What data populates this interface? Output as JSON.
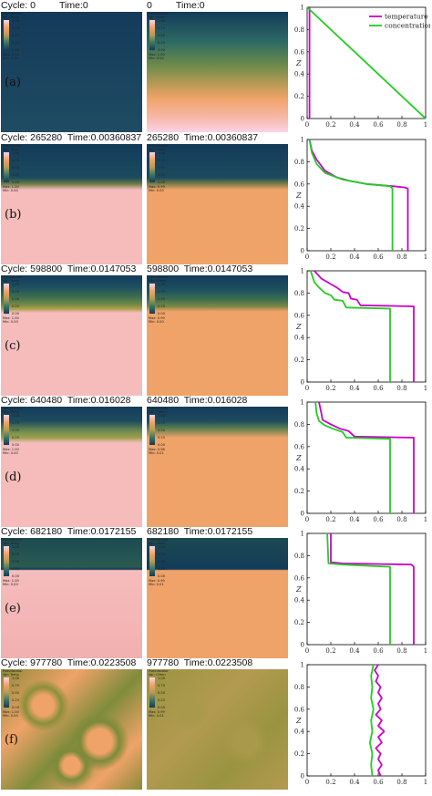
{
  "colors": {
    "dark": "#143b5a",
    "peach": "#f0a368",
    "pink": "#f6bcbc",
    "temperature": "#cc00cc",
    "concentration": "#22cc22"
  },
  "rows": [
    {
      "label": "(a)",
      "cycle_label": "Cycle:",
      "cycle": "0",
      "time_label": "Time:0",
      "temp_legend": {
        "title": "Pseudocolor",
        "var": "Var: Temp",
        "max": "Max: 0.02",
        "min": "Min: 0.00"
      },
      "chem_legend": {
        "title": "Pseudocolor",
        "var": "Var: Chem",
        "max": "Max: 1.00",
        "min": "Min: 0.00"
      }
    },
    {
      "label": "(b)",
      "cycle_label": "Cycle:",
      "cycle": "265280",
      "time_label": "Time:0.00360837",
      "temp_legend": {
        "title": "Pseudocolor",
        "var": "Var: Temp",
        "max": "Max: 1.00",
        "min": "Min: 0.00"
      },
      "chem_legend": {
        "title": "Pseudocolor",
        "var": "Var: Chem",
        "max": "Max: 0.99",
        "min": "Min: 0.00"
      }
    },
    {
      "label": "(c)",
      "cycle_label": "Cycle:",
      "cycle": "598800",
      "time_label": "Time:0.0147053",
      "temp_legend": {
        "title": "Pseudocolor",
        "var": "Var: Temp",
        "max": "Max: 1.00",
        "min": "Min: 0.00"
      },
      "chem_legend": {
        "title": "Pseudocolor",
        "var": "Var: Chem",
        "max": "Max: 0.99",
        "min": "Min: 0.00"
      }
    },
    {
      "label": "(d)",
      "cycle_label": "Cycle:",
      "cycle": "640480",
      "time_label": "Time:0.016028",
      "temp_legend": {
        "title": "Pseudocolor",
        "var": "Var: Temp",
        "max": "Max: 1.00",
        "min": "Min: 0.00"
      },
      "chem_legend": {
        "title": "Pseudocolor",
        "var": "Var: Chem",
        "max": "Max: 0.98",
        "min": "Min: 0.01"
      }
    },
    {
      "label": "(e)",
      "cycle_label": "Cycle:",
      "cycle": "682180",
      "time_label": "Time:0.0172155",
      "temp_legend": {
        "title": "Pseudocolor",
        "var": "Var: Temp",
        "max": "Max: 1.00",
        "min": "Min: 0.00"
      },
      "chem_legend": {
        "title": "Pseudocolor",
        "var": "Var: Chem",
        "max": "Max: 0.99",
        "min": "Min: 0.01"
      }
    },
    {
      "label": "(f)",
      "cycle_label": "Cycle:",
      "cycle": "977780",
      "time_label": "Time:0.0223508",
      "temp_legend": {
        "title": "Pseudocolor",
        "var": "Var: Temp",
        "max": "Max: 1.00",
        "min": "Min: 0.00"
      },
      "chem_legend": {
        "title": "Pseudocolor",
        "var": "Var: Chem",
        "max": "Max: 0.99",
        "min": "Min: 0.01"
      }
    }
  ],
  "colorbar_ticks": [
    "1.00",
    "0.75",
    "0.50",
    "0.25",
    "0.00"
  ],
  "chart_data": {
    "type": "line",
    "xlim": [
      0,
      1
    ],
    "ylim": [
      0,
      1
    ],
    "x_ticks": [
      "0",
      "0.2",
      "0.4",
      "0.6",
      "0.8",
      "1"
    ],
    "y_ticks": [
      "0",
      "0.2",
      "0.4",
      "0.6",
      "0.8",
      "1"
    ],
    "ylabel": "Z",
    "xlabel": "",
    "legend": [
      "temperature",
      "concentration"
    ],
    "legend_position": "top-right",
    "profiles": [
      {
        "panel": "(a)",
        "temperature": [
          [
            0.02,
            0
          ],
          [
            0.02,
            1
          ]
        ],
        "concentration": [
          [
            1,
            0
          ],
          [
            0,
            1
          ]
        ]
      },
      {
        "panel": "(b)",
        "temperature": [
          [
            0.85,
            0
          ],
          [
            0.85,
            0.56
          ],
          [
            0.82,
            0.57
          ],
          [
            0.72,
            0.58
          ],
          [
            0.5,
            0.6
          ],
          [
            0.35,
            0.63
          ],
          [
            0.25,
            0.66
          ],
          [
            0.15,
            0.72
          ],
          [
            0.08,
            0.82
          ],
          [
            0.04,
            0.9
          ],
          [
            0.02,
            1
          ]
        ],
        "concentration": [
          [
            0.72,
            0
          ],
          [
            0.72,
            0.56
          ],
          [
            0.7,
            0.58
          ],
          [
            0.5,
            0.6
          ],
          [
            0.3,
            0.64
          ],
          [
            0.15,
            0.7
          ],
          [
            0.08,
            0.78
          ],
          [
            0.04,
            0.88
          ],
          [
            0.02,
            1
          ]
        ]
      },
      {
        "panel": "(c)",
        "temperature": [
          [
            0.9,
            0
          ],
          [
            0.9,
            0.68
          ],
          [
            0.45,
            0.69
          ],
          [
            0.42,
            0.74
          ],
          [
            0.37,
            0.75
          ],
          [
            0.35,
            0.8
          ],
          [
            0.3,
            0.81
          ],
          [
            0.25,
            0.85
          ],
          [
            0.2,
            0.88
          ],
          [
            0.12,
            0.93
          ],
          [
            0.06,
            1
          ]
        ],
        "concentration": [
          [
            0.7,
            0
          ],
          [
            0.7,
            0.66
          ],
          [
            0.33,
            0.67
          ],
          [
            0.3,
            0.73
          ],
          [
            0.23,
            0.74
          ],
          [
            0.2,
            0.78
          ],
          [
            0.15,
            0.8
          ],
          [
            0.1,
            0.85
          ],
          [
            0.06,
            0.9
          ],
          [
            0.03,
            1
          ]
        ]
      },
      {
        "panel": "(d)",
        "temperature": [
          [
            0.9,
            0
          ],
          [
            0.9,
            0.68
          ],
          [
            0.4,
            0.69
          ],
          [
            0.35,
            0.74
          ],
          [
            0.28,
            0.76
          ],
          [
            0.2,
            0.8
          ],
          [
            0.13,
            0.84
          ],
          [
            0.12,
            0.9
          ],
          [
            0.1,
            1
          ]
        ],
        "concentration": [
          [
            0.7,
            0
          ],
          [
            0.7,
            0.67
          ],
          [
            0.33,
            0.68
          ],
          [
            0.3,
            0.73
          ],
          [
            0.22,
            0.76
          ],
          [
            0.15,
            0.79
          ],
          [
            0.1,
            0.83
          ],
          [
            0.08,
            0.9
          ],
          [
            0.07,
            1
          ]
        ]
      },
      {
        "panel": "(e)",
        "temperature": [
          [
            0.9,
            0
          ],
          [
            0.9,
            0.7
          ],
          [
            0.88,
            0.72
          ],
          [
            0.3,
            0.73
          ],
          [
            0.2,
            0.74
          ],
          [
            0.2,
            1
          ]
        ],
        "concentration": [
          [
            0.7,
            0
          ],
          [
            0.7,
            0.7
          ],
          [
            0.3,
            0.72
          ],
          [
            0.18,
            0.73
          ],
          [
            0.17,
            1
          ]
        ]
      },
      {
        "panel": "(f)",
        "temperature": [
          [
            0.62,
            0
          ],
          [
            0.6,
            0.05
          ],
          [
            0.63,
            0.1
          ],
          [
            0.6,
            0.15
          ],
          [
            0.62,
            0.2
          ],
          [
            0.58,
            0.25
          ],
          [
            0.63,
            0.3
          ],
          [
            0.6,
            0.35
          ],
          [
            0.65,
            0.4
          ],
          [
            0.6,
            0.45
          ],
          [
            0.63,
            0.5
          ],
          [
            0.58,
            0.55
          ],
          [
            0.62,
            0.6
          ],
          [
            0.6,
            0.65
          ],
          [
            0.63,
            0.7
          ],
          [
            0.6,
            0.75
          ],
          [
            0.62,
            0.8
          ],
          [
            0.58,
            0.85
          ],
          [
            0.6,
            0.9
          ],
          [
            0.57,
            0.95
          ],
          [
            0.6,
            1
          ]
        ],
        "concentration": [
          [
            0.55,
            0
          ],
          [
            0.54,
            0.1
          ],
          [
            0.55,
            0.2
          ],
          [
            0.53,
            0.3
          ],
          [
            0.55,
            0.4
          ],
          [
            0.54,
            0.5
          ],
          [
            0.56,
            0.6
          ],
          [
            0.54,
            0.7
          ],
          [
            0.55,
            0.8
          ],
          [
            0.54,
            0.9
          ],
          [
            0.56,
            1
          ]
        ]
      }
    ]
  }
}
